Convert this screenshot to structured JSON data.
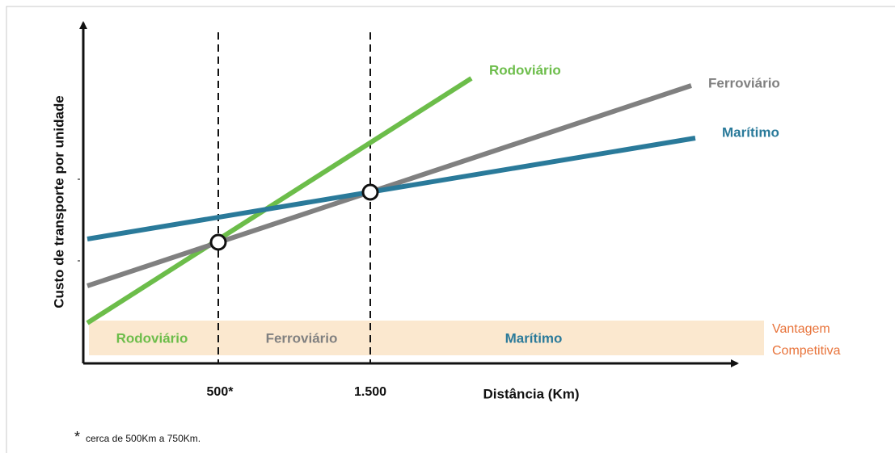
{
  "axes": {
    "y_label": "Custo de transporte por unidade",
    "x_label": "Distância (Km)",
    "x_marks": [
      "500*",
      "1.500"
    ]
  },
  "lines": [
    "Rodoviário",
    "Ferroviário",
    "Marítimo"
  ],
  "zones": {
    "labels": [
      "Rodoviário",
      "Ferroviário",
      "Marítimo"
    ],
    "caption": [
      "Vantagem",
      "Competitiva"
    ]
  },
  "footnote": {
    "mark": "*",
    "text": "cerca de 500Km a 750Km."
  }
}
